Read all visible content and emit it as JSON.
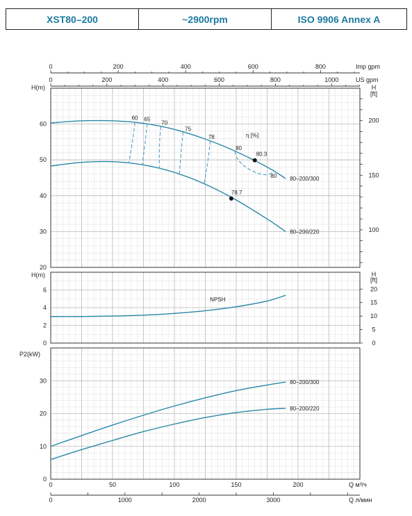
{
  "header": {
    "model": "XST80–200",
    "speed": "~2900rpm",
    "standard": "ISO 9906   Annex A"
  },
  "colors": {
    "curve": "#2a87a7",
    "dashed": "#5aa6c8",
    "grid_major": "#b8b8b8",
    "grid_minor": "#dcdcdc",
    "axis": "#333333",
    "header_text": "#1b7aa0"
  },
  "chart_data": [
    {
      "id": "head",
      "type": "line",
      "ylabel": "H(m)",
      "y2label": "H\n[ft]",
      "ylim": [
        20,
        70
      ],
      "yticks": [
        20,
        30,
        40,
        50,
        60
      ],
      "y2ticks": [
        100,
        150,
        200
      ],
      "top_axes": [
        {
          "label": "Imp gpm",
          "ticks": [
            "0",
            "200",
            "400",
            "600",
            "800"
          ]
        },
        {
          "label": "US gpm",
          "ticks": [
            "0",
            "200",
            "400",
            "600",
            "800",
            "1000"
          ]
        }
      ],
      "efficiency_label": "η [%]",
      "series": [
        {
          "name": "80–200/300",
          "x": [
            0,
            25,
            50,
            75,
            100,
            125,
            150,
            175,
            190
          ],
          "y": [
            60.3,
            60.9,
            60.9,
            60.2,
            58.5,
            55.8,
            52.3,
            48.0,
            44.8
          ]
        },
        {
          "name": "80–200/220",
          "x": [
            0,
            25,
            50,
            75,
            100,
            125,
            150,
            175,
            190
          ],
          "y": [
            48.3,
            49.3,
            49.5,
            48.6,
            46.5,
            43.2,
            38.8,
            33.5,
            30.0
          ]
        }
      ],
      "efficiency_iso_labels": [
        {
          "label": "60",
          "q": 68
        },
        {
          "label": "65",
          "q": 78
        },
        {
          "label": "70",
          "q": 92
        },
        {
          "label": "75",
          "q": 111
        },
        {
          "label": "78",
          "q": 130
        },
        {
          "label": "80",
          "q": 152
        },
        {
          "label": "80",
          "q": 178
        }
      ],
      "efficiency_lines": [
        {
          "q_top": 68,
          "q_bottom": 63
        },
        {
          "q_top": 78,
          "q_bottom": 74
        },
        {
          "q_top": 89,
          "q_bottom": 88
        },
        {
          "q_top": 107,
          "q_bottom": 104
        },
        {
          "q_top": 129,
          "q_bottom": 124
        }
      ],
      "bep_points": [
        {
          "label": "80.3",
          "x": 165,
          "y": 49.9
        },
        {
          "label": "78.7",
          "x": 146,
          "y": 39.2
        }
      ]
    },
    {
      "id": "npsh",
      "type": "line",
      "ylabel": "H(m)",
      "y2label": "H\n[ft]",
      "ylim": [
        0,
        8
      ],
      "yticks": [
        0,
        2,
        4,
        6
      ],
      "y2ticks": [
        0,
        5,
        10,
        15,
        20
      ],
      "series": [
        {
          "name": "NPSH",
          "x": [
            0,
            25,
            50,
            75,
            100,
            125,
            150,
            175,
            190
          ],
          "y": [
            3.0,
            3.0,
            3.05,
            3.15,
            3.35,
            3.65,
            4.1,
            4.75,
            5.4
          ]
        }
      ]
    },
    {
      "id": "power",
      "type": "line",
      "ylabel": "P2(kW)",
      "ylim": [
        0,
        40
      ],
      "yticks": [
        0,
        10,
        20,
        30
      ],
      "xlabel": "Q  м³/ч",
      "xticks": [
        0,
        50,
        100,
        150,
        200
      ],
      "x2label": "Q  л/мин",
      "x2ticks": [
        "0",
        "1000",
        "2000",
        "3000"
      ],
      "series": [
        {
          "name": "80–200/300",
          "x": [
            0,
            25,
            50,
            75,
            100,
            125,
            150,
            175,
            190
          ],
          "y": [
            10.0,
            13.3,
            16.5,
            19.5,
            22.3,
            24.8,
            27.0,
            28.7,
            29.6
          ]
        },
        {
          "name": "80–200/220",
          "x": [
            0,
            25,
            50,
            75,
            100,
            125,
            150,
            175,
            190
          ],
          "y": [
            6.0,
            9.0,
            11.8,
            14.5,
            16.8,
            18.8,
            20.3,
            21.3,
            21.6
          ]
        }
      ]
    }
  ]
}
